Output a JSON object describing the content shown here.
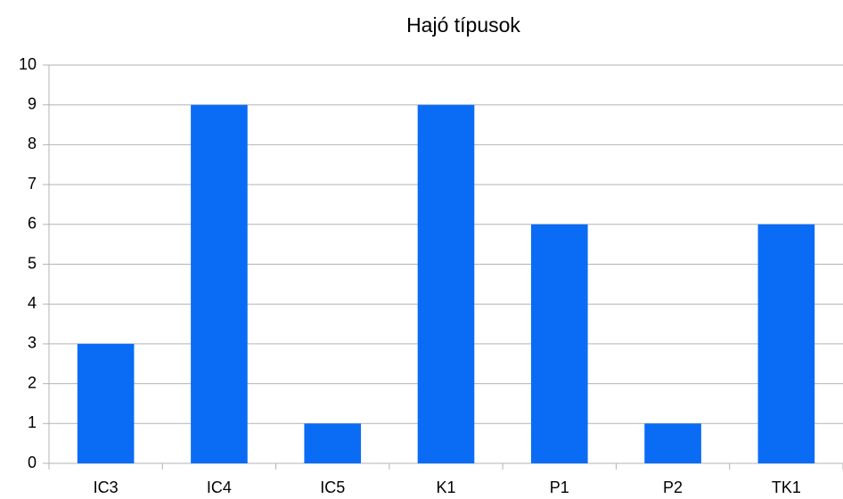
{
  "chart_data": {
    "type": "bar",
    "title": "Hajó típusok",
    "categories": [
      "IC3",
      "IC4",
      "IC5",
      "K1",
      "P1",
      "P2",
      "TK1"
    ],
    "values": [
      3,
      9,
      1,
      9,
      6,
      1,
      6
    ],
    "color": "#0a6cf5",
    "ylim": [
      0,
      10
    ],
    "yticks": [
      0,
      1,
      2,
      3,
      4,
      5,
      6,
      7,
      8,
      9,
      10
    ],
    "grid": true
  }
}
